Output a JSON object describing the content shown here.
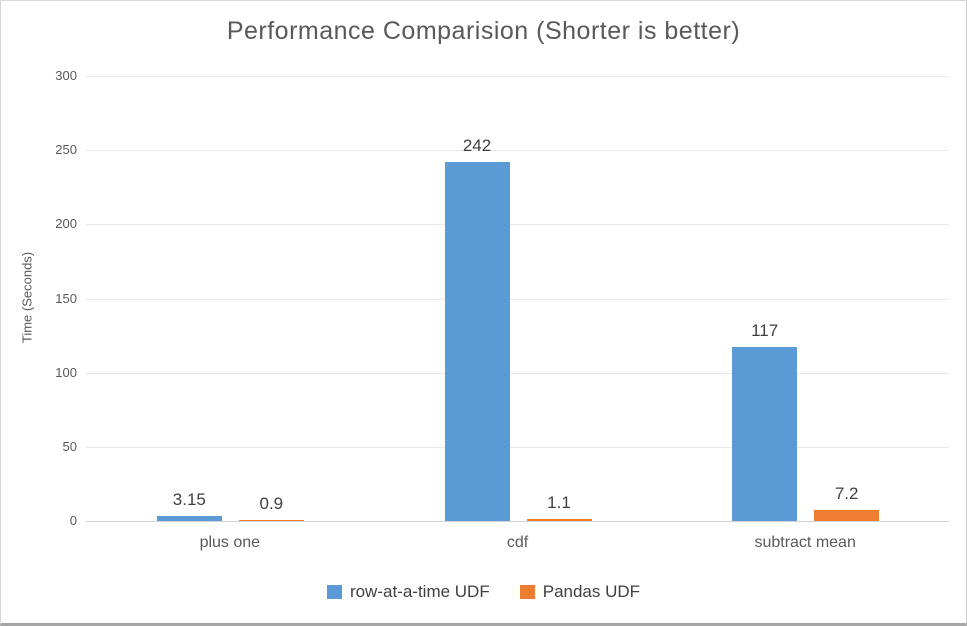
{
  "window": {
    "background": "#ffffff",
    "border_color": "#d9d9d9",
    "bottom_border_color": "#a6a6a6"
  },
  "chart_data": {
    "type": "bar",
    "title": "Performance Comparision (Shorter is better)",
    "xlabel": "",
    "ylabel": "Time (Seconds)",
    "categories": [
      "plus one",
      "cdf",
      "subtract mean"
    ],
    "series": [
      {
        "name": "row-at-a-time UDF",
        "color": "#5B9BD5",
        "values": [
          3.15,
          242,
          117
        ],
        "data_labels": [
          "3.15",
          "242",
          "117"
        ]
      },
      {
        "name": "Pandas UDF",
        "color": "#ED7D31",
        "values": [
          0.9,
          1.1,
          7.2
        ],
        "data_labels": [
          "0.9",
          "1.1",
          "7.2"
        ]
      }
    ],
    "ylim": [
      0,
      300
    ],
    "yticks": [
      300,
      250,
      200,
      150,
      100,
      50,
      0
    ],
    "grid": true,
    "gridline_color": "#e8e8e8",
    "legend_position": "bottom",
    "label_color": "#3f3f3f",
    "axis_text_color": "#595959"
  }
}
